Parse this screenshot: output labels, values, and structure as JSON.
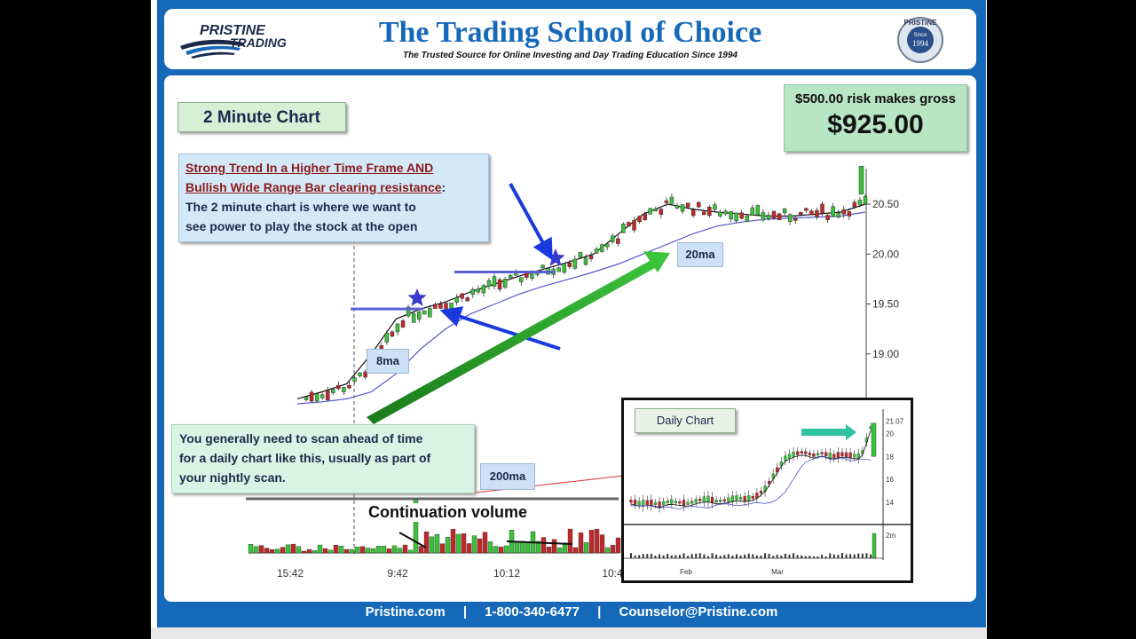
{
  "header": {
    "logo_line1": "PRISTINE",
    "logo_line2": "TRADING",
    "title": "The Trading School of Choice",
    "subtitle": "The Trusted Source for Online Investing and Day Trading Education Since 1994",
    "seal_top": "PRISTINE",
    "seal_mid": "Since",
    "seal_year": "1994"
  },
  "main": {
    "chart_label": "2 Minute Chart",
    "risk_text": "$500.00 risk makes gross",
    "gross_amount": "$925.00",
    "note1_line1": "Strong Trend In a Higher Time Frame AND",
    "note1_line2": "Bullish Wide Range Bar clearing resistance",
    "note1_colon": ":",
    "note1_line3": "The 2 minute chart is  where we want to",
    "note1_line4": "see power to play the stock at the open",
    "note2_line1": "You generally need to scan ahead of time",
    "note2_line2": "for a daily chart like this, usually as part of",
    "note2_line3": "your nightly scan.",
    "ma8_label": "8ma",
    "ma20_label": "20ma",
    "ma200_label": "200ma",
    "volume_label": "Continuation volume",
    "daily_label": "Daily Chart"
  },
  "footer": {
    "site": "Pristine.com",
    "sep": "|",
    "phone": "1-800-340-6477",
    "email": "Counselor@Pristine.com"
  },
  "colors": {
    "brand_blue": "#1569b8",
    "up_candle": "#39c23a",
    "down_candle": "#c0282a",
    "ma8": "#111111",
    "ma20": "#5555cc",
    "ma200": "#e05050"
  },
  "chart_data": [
    {
      "type": "line",
      "title": "2 Minute Chart",
      "x_ticks": [
        "15:42",
        "9:42",
        "10:12",
        "10:4"
      ],
      "y_ticks": [
        "20.50",
        "20.00",
        "19.50",
        "19.00"
      ],
      "ylim": [
        18.5,
        20.9
      ],
      "series": [
        {
          "name": "8ma",
          "values": [
            18.55,
            18.62,
            18.7,
            19.0,
            19.35,
            19.45,
            19.52,
            19.62,
            19.7,
            19.78,
            19.85,
            19.92,
            20.0,
            20.2,
            20.4,
            20.5,
            20.45,
            20.42,
            20.4,
            20.38,
            20.38,
            20.4,
            20.42,
            20.5
          ]
        },
        {
          "name": "20ma",
          "values": [
            18.5,
            18.52,
            18.55,
            18.62,
            18.8,
            19.05,
            19.25,
            19.4,
            19.5,
            19.6,
            19.68,
            19.75,
            19.82,
            19.9,
            20.0,
            20.1,
            20.2,
            20.28,
            20.32,
            20.35,
            20.36,
            20.37,
            20.38,
            20.42
          ]
        },
        {
          "name": "200ma",
          "values": [
            17.6,
            17.62,
            17.64,
            17.66,
            17.68,
            17.7,
            17.72,
            17.74,
            17.76,
            17.78,
            17.8,
            17.82,
            17.84,
            17.86,
            17.88,
            17.9,
            17.92,
            17.94,
            17.96,
            17.98,
            18.0,
            18.02,
            18.04,
            18.1
          ]
        }
      ]
    },
    {
      "type": "line",
      "title": "Daily Chart",
      "x_ticks": [
        "Feb",
        "Mar"
      ],
      "y_ticks": [
        "21.07",
        "20",
        "18",
        "16",
        "14"
      ],
      "volume_tick": "2m",
      "ylim": [
        13,
        21.5
      ],
      "series": [
        {
          "name": "close",
          "values": [
            14.1,
            13.9,
            14.0,
            13.8,
            14.1,
            14.0,
            13.9,
            14.2,
            14.3,
            14.1,
            14.2,
            14.4,
            14.3,
            14.5,
            15.2,
            16.5,
            17.8,
            18.2,
            18.4,
            18.1,
            18.3,
            18.0,
            18.2,
            18.1,
            18.0,
            20.5
          ]
        }
      ]
    }
  ]
}
